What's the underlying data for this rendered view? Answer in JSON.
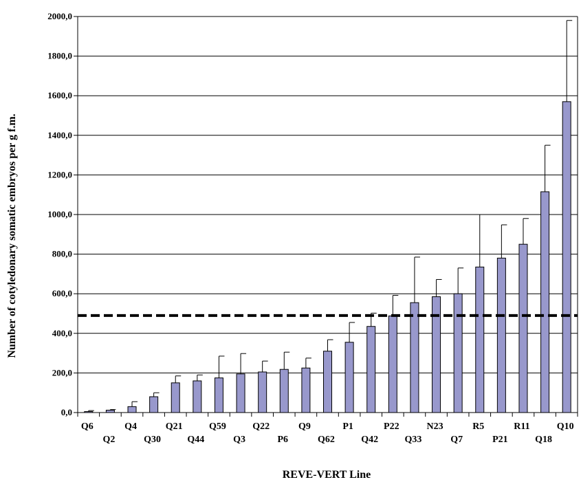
{
  "chart_data": {
    "type": "bar",
    "title": "",
    "xlabel": "REVE-VERT  Line",
    "ylabel": "Number of cotyledonary somatic embryos per g f.m.",
    "ylim": [
      0,
      2000
    ],
    "ytick_values": [
      0,
      200,
      400,
      600,
      800,
      1000,
      1200,
      1400,
      1600,
      1800,
      2000
    ],
    "ytick_labels": [
      "0,0",
      "200,0",
      "400,0",
      "600,0",
      "800,0",
      "1000,0",
      "1200,0",
      "1400,0",
      "1600,0",
      "1800,0",
      "2000,0"
    ],
    "categories": [
      "Q6",
      "Q2",
      "Q4",
      "Q30",
      "Q21",
      "Q44",
      "Q59",
      "Q3",
      "Q22",
      "P6",
      "Q9",
      "Q62",
      "P1",
      "Q42",
      "P22",
      "Q33",
      "N23",
      "Q7",
      "R5",
      "P21",
      "R11",
      "Q18",
      "Q10"
    ],
    "values": [
      5,
      12,
      30,
      80,
      150,
      160,
      175,
      195,
      205,
      218,
      225,
      310,
      355,
      435,
      488,
      555,
      585,
      600,
      735,
      780,
      850,
      1115,
      1570
    ],
    "error_upper": [
      10,
      15,
      55,
      100,
      185,
      190,
      285,
      298,
      260,
      305,
      275,
      368,
      455,
      502,
      592,
      785,
      672,
      730,
      1000,
      948,
      980,
      1350,
      1980
    ],
    "reference_line": 490,
    "grid": true,
    "colors": {
      "bar_fill": "#9898cc",
      "bar_stroke": "#000000",
      "reference_line": "#000000"
    }
  }
}
